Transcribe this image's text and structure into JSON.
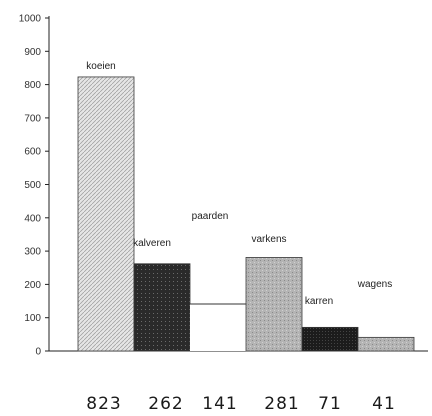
{
  "chart_data": {
    "type": "bar",
    "title": "",
    "xlabel": "",
    "ylabel": "",
    "ylim": [
      0,
      1000
    ],
    "yticks": [
      0,
      100,
      200,
      300,
      400,
      500,
      600,
      700,
      800,
      900,
      1000
    ],
    "grid": false,
    "legend": "none",
    "categories": [
      "koeien",
      "kalveren",
      "paarden",
      "varkens",
      "karren",
      "wagens"
    ],
    "values": [
      823,
      262,
      141,
      281,
      71,
      41
    ],
    "value_labels": [
      "823",
      "262",
      "141",
      "281",
      "71",
      "41"
    ],
    "bar_fills": [
      "#e4e4e4",
      "#2b2b2b",
      "#ffffff",
      "#b2b2b2",
      "#1e1e1e",
      "#bdbdbd"
    ],
    "bar_patterns": [
      "hatched-light",
      "dark-speckled",
      "empty",
      "grey-speckled",
      "dark",
      "grey-speckled"
    ],
    "axis_color": "#222222"
  }
}
